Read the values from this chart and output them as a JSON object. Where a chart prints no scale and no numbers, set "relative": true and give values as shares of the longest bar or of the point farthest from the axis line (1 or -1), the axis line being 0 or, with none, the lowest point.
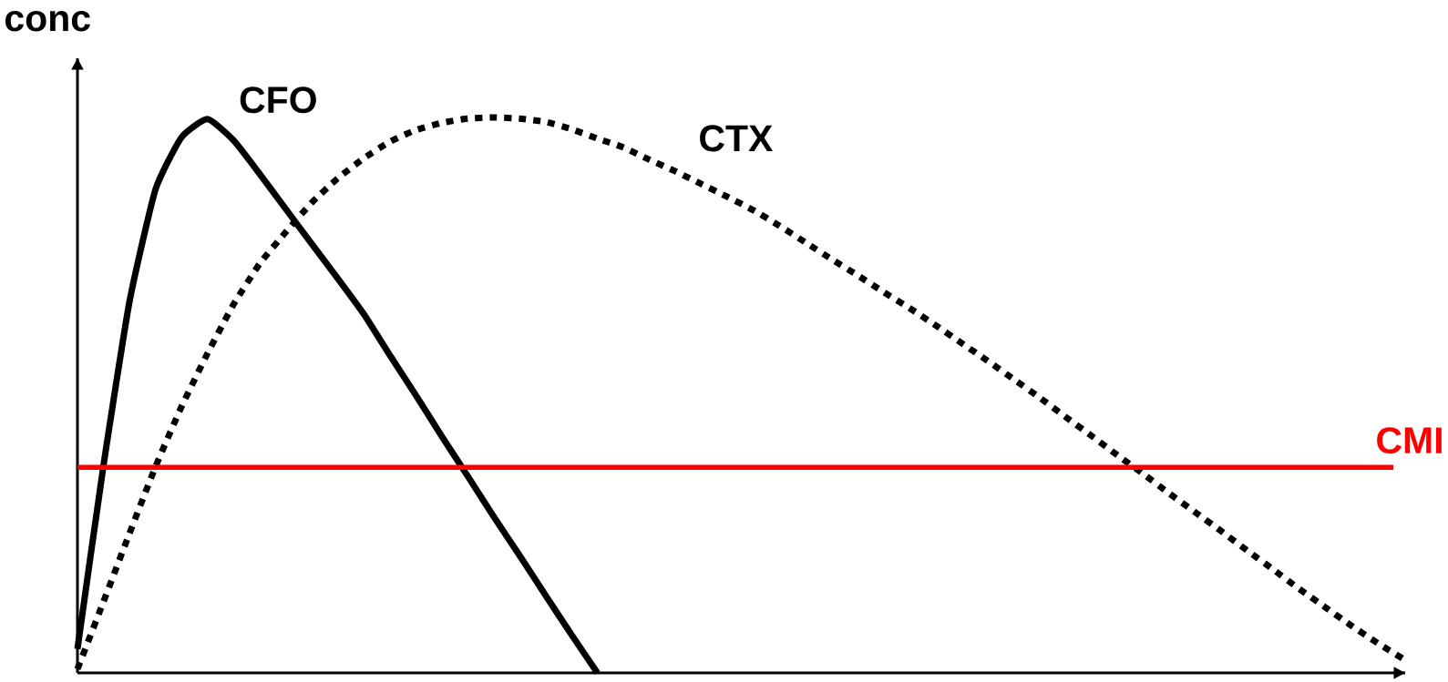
{
  "chart_data": {
    "type": "line",
    "ylabel": "conc",
    "relative": true,
    "categories": [
      null,
      null,
      null,
      null,
      null,
      null,
      null,
      null,
      null,
      null,
      null,
      null,
      null,
      null,
      null,
      null,
      null,
      null,
      null,
      null,
      null,
      null,
      null,
      null,
      null,
      null,
      null,
      null,
      null,
      null,
      null,
      null,
      null,
      null,
      null,
      null,
      null,
      null,
      null,
      null,
      null,
      null,
      null,
      null,
      null,
      null,
      null,
      null,
      null,
      null,
      null,
      null
    ],
    "series": [
      {
        "name": "CFO",
        "color": "#000000",
        "line_style": "solid",
        "values": [
          0.043,
          0.373,
          0.668,
          0.87,
          0.964,
          0.997,
          0.959,
          0.899,
          0.836,
          0.773,
          0.711,
          0.647,
          0.573,
          0.501,
          0.427,
          0.355,
          0.282,
          0.212,
          0.14,
          0.069,
          0.0,
          null,
          null,
          null,
          null,
          null,
          null,
          null,
          null,
          null,
          null,
          null,
          null,
          null,
          null,
          null,
          null,
          null,
          null,
          null,
          null,
          null,
          null,
          null,
          null,
          null,
          null,
          null,
          null,
          null,
          null,
          null
        ]
      },
      {
        "name": "CTX",
        "color": "#000000",
        "line_style": "dotted",
        "values": [
          0.007,
          0.128,
          0.251,
          0.371,
          0.479,
          0.575,
          0.663,
          0.736,
          0.793,
          0.846,
          0.89,
          0.926,
          0.956,
          0.977,
          0.99,
          0.998,
          1.0,
          0.998,
          0.992,
          0.979,
          0.962,
          0.946,
          0.924,
          0.903,
          0.88,
          0.857,
          0.833,
          0.805,
          0.775,
          0.745,
          0.716,
          0.686,
          0.657,
          0.626,
          0.594,
          0.562,
          0.529,
          0.496,
          0.461,
          0.427,
          0.392,
          0.358,
          0.323,
          0.289,
          0.255,
          0.22,
          0.186,
          0.151,
          0.118,
          0.085,
          0.054,
          0.025
        ]
      }
    ],
    "ref_lines": [
      {
        "axis": "y",
        "value": 0.37,
        "label": "CMI",
        "color": "#ff0000"
      }
    ]
  }
}
